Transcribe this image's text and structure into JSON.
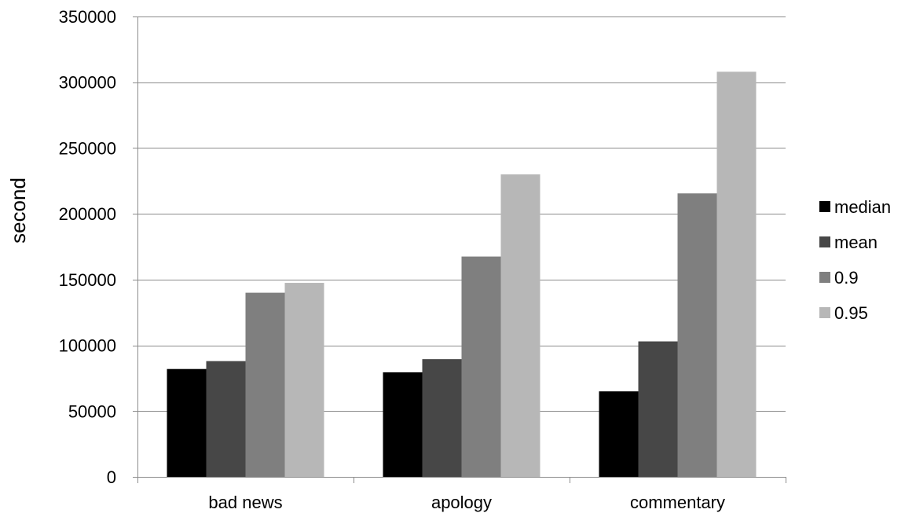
{
  "chart_data": {
    "type": "bar",
    "categories": [
      "bad news",
      "apology",
      "commentary"
    ],
    "series": [
      {
        "name": "median",
        "color": "#000000",
        "values": [
          82000,
          79500,
          65000
        ]
      },
      {
        "name": "mean",
        "color": "#474747",
        "values": [
          88000,
          89500,
          103000
        ]
      },
      {
        "name": "0.9",
        "color": "#7f7f7f",
        "values": [
          140000,
          167500,
          215500
        ]
      },
      {
        "name": "0.95",
        "color": "#b7b7b7",
        "values": [
          147500,
          230000,
          308000
        ]
      }
    ],
    "ylabel": "second",
    "xlabel": "",
    "ylim": [
      0,
      350000
    ],
    "yticks": [
      0,
      50000,
      100000,
      150000,
      200000,
      250000,
      300000,
      350000
    ],
    "ytick_labels": [
      "0",
      "50000",
      "100000",
      "150000",
      "200000",
      "250000",
      "300000",
      "350000"
    ],
    "grid": "horizontal",
    "gridline_color": "#8c8c8c",
    "legend": "right"
  }
}
